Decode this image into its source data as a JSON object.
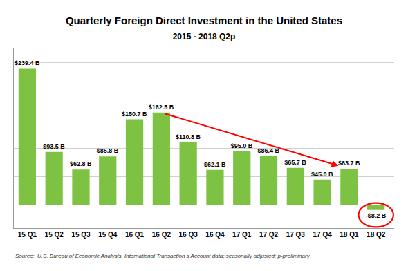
{
  "chart_data": {
    "type": "bar",
    "title": "Quarterly Foreign Direct Investment in the United States",
    "subtitle": "2015 - 2018 Q2p",
    "categories": [
      "15 Q1",
      "15 Q2",
      "15 Q3",
      "15 Q4",
      "16 Q1",
      "16 Q2",
      "16 Q3",
      "16 Q4",
      "17 Q1",
      "17 Q2",
      "17 Q3",
      "17 Q4",
      "18 Q1",
      "18 Q2"
    ],
    "values": [
      239.4,
      93.5,
      62.8,
      85.8,
      150.7,
      162.5,
      110.8,
      62.1,
      95.0,
      86.4,
      65.7,
      45.0,
      63.7,
      -8.2
    ],
    "value_labels": [
      "$239.4 B",
      "$93.5 B",
      "$62.8 B",
      "$85.8 B",
      "$150.7 B",
      "$162.5 B",
      "$110.8 B",
      "$62.1 B",
      "$95.0 B",
      "$86.4 B",
      "$65.7 B",
      "$45.0 B",
      "$63.7 B",
      "-$8.2 B"
    ],
    "data_labels": true,
    "color": "#7dc242",
    "ylim": [
      -40,
      275
    ],
    "yticks": [
      0,
      50,
      100,
      150,
      200,
      250
    ],
    "grid": true,
    "tick_labels": "x",
    "annotations": [
      "Source:  U.S. Bureau of Economic Analysis, International Transaction s Account data; seasonally adjusted; p-preliminary"
    ]
  }
}
